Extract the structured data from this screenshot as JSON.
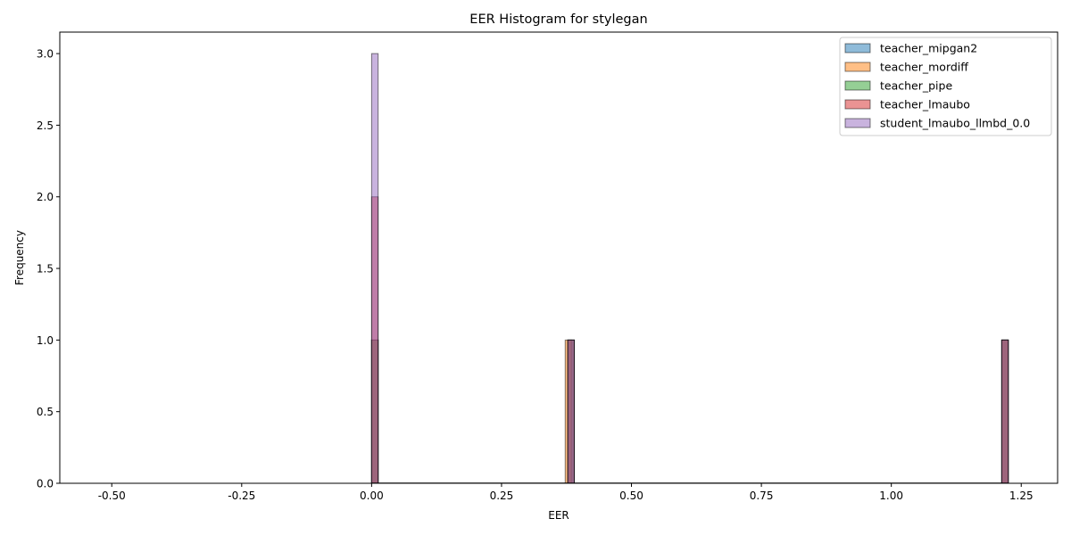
{
  "chart_data": {
    "type": "bar",
    "title": "EER Histogram for stylegan",
    "xlabel": "EER",
    "ylabel": "Frequency",
    "xlim": [
      -0.6,
      1.32
    ],
    "ylim": [
      0,
      3.15
    ],
    "xticks": [
      "-0.50",
      "-0.25",
      "0.00",
      "0.25",
      "0.50",
      "0.75",
      "1.00",
      "1.25"
    ],
    "xtick_values": [
      -0.5,
      -0.25,
      0.0,
      0.25,
      0.5,
      0.75,
      1.0,
      1.25
    ],
    "yticks": [
      "0.0",
      "0.5",
      "1.0",
      "1.5",
      "2.0",
      "2.5",
      "3.0"
    ],
    "ytick_values": [
      0,
      0.5,
      1.0,
      1.5,
      2.0,
      2.5,
      3.0
    ],
    "grid": false,
    "legend_position": "top-right",
    "bin_width": 0.0125,
    "series": [
      {
        "name": "teacher_mipgan2",
        "color": "#1f77b4",
        "bins": [
          {
            "x": 0.0,
            "count": 1
          },
          {
            "x": 0.3775,
            "count": 1
          },
          {
            "x": 1.2125,
            "count": 1
          }
        ]
      },
      {
        "name": "teacher_mordiff",
        "color": "#ff7f0e",
        "bins": [
          {
            "x": 0.0,
            "count": 1
          },
          {
            "x": 0.3725,
            "count": 1
          },
          {
            "x": 1.2125,
            "count": 1
          }
        ]
      },
      {
        "name": "teacher_pipe",
        "color": "#2ca02c",
        "bins": [
          {
            "x": 0.0,
            "count": 1
          },
          {
            "x": 0.3775,
            "count": 1
          },
          {
            "x": 1.2125,
            "count": 1
          }
        ]
      },
      {
        "name": "teacher_lmaubo",
        "color": "#d62728",
        "bins": [
          {
            "x": 0.0,
            "count": 2
          },
          {
            "x": 0.3775,
            "count": 1
          },
          {
            "x": 1.2125,
            "count": 1
          }
        ]
      },
      {
        "name": "student_lmaubo_llmbd_0.0",
        "color": "#9467bd",
        "bins": [
          {
            "x": 0.0,
            "count": 3
          },
          {
            "x": 0.3775,
            "count": 1
          },
          {
            "x": 1.2125,
            "count": 1
          }
        ]
      }
    ]
  }
}
